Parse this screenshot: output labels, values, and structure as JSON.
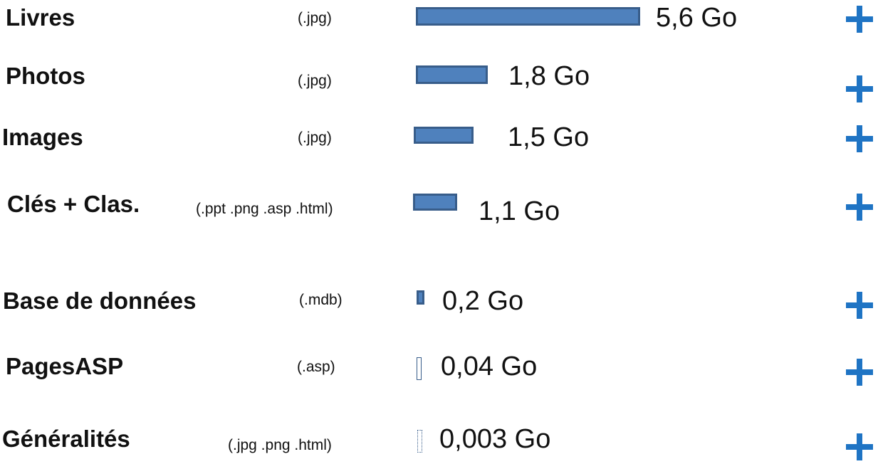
{
  "chart_data": {
    "type": "bar",
    "orientation": "horizontal",
    "unit": "Go",
    "categories": [
      "Livres",
      "Photos",
      "Images",
      "Clés + Clas.",
      "Base de données",
      "PagesASP",
      "Généralités"
    ],
    "extensions": [
      "(.jpg)",
      "(.jpg)",
      "(.jpg)",
      "(.ppt  .png  .asp  .html)",
      "(.mdb)",
      "(.asp)",
      "(.jpg  .png  .html)"
    ],
    "values": [
      5.6,
      1.8,
      1.5,
      1.1,
      0.2,
      0.04,
      0.003
    ],
    "value_labels": [
      "5,6 Go",
      "1,8 Go",
      "1,5 Go",
      "1,1 Go",
      "0,2 Go",
      "0,04 Go",
      "0,003 Go"
    ],
    "bar_color": "#4f81bd",
    "bar_border_color": "#385d8a",
    "grid": false,
    "legend": "none"
  },
  "expand_icon": {
    "name": "plus-icon",
    "color": "#1f74c4"
  }
}
